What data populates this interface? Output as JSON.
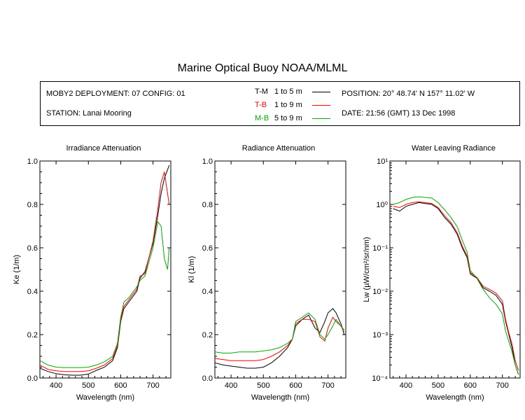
{
  "title": "Marine Optical Buoy NOAA/MLML",
  "info": {
    "deployment": "MOBY2 DEPLOYMENT: 07 CONFIG: 01",
    "station": "STATION: Lanai Mooring",
    "position": "POSITION: 20° 48.74' N   157° 11.02' W",
    "date": "DATE: 21:56 (GMT) 13 Dec 1998"
  },
  "legend": [
    {
      "code": "T-M",
      "range": "1 to 5  m",
      "color": "#000000"
    },
    {
      "code": "T-B",
      "range": "1 to 9  m",
      "color": "#ff0000"
    },
    {
      "code": "M-B",
      "range": "5 to 9  m",
      "color": "#00aa00"
    }
  ],
  "chart_data": [
    {
      "type": "line",
      "title": "Irradiance Attenuation",
      "xlabel": "Wavelength (nm)",
      "ylabel": "Ke  (1/m)",
      "xlim": [
        350,
        755
      ],
      "ylim": [
        0,
        1.0
      ],
      "xticks": [
        "400",
        "500",
        "600",
        "700"
      ],
      "yticks": [
        "0.0",
        "0.2",
        "0.4",
        "0.6",
        "0.8",
        "1.0"
      ],
      "x": [
        350,
        375,
        400,
        425,
        450,
        475,
        500,
        525,
        550,
        575,
        590,
        600,
        610,
        625,
        650,
        660,
        675,
        700,
        715,
        725,
        735,
        745,
        750
      ],
      "series": [
        {
          "name": "T-M",
          "color": "#000000",
          "values": [
            0.045,
            0.03,
            0.02,
            0.015,
            0.013,
            0.013,
            0.018,
            0.035,
            0.05,
            0.08,
            0.14,
            0.26,
            0.32,
            0.35,
            0.4,
            0.46,
            0.49,
            0.62,
            0.75,
            0.85,
            0.92,
            0.96,
            0.98
          ]
        },
        {
          "name": "T-B",
          "color": "#ff0000",
          "values": [
            0.06,
            0.04,
            0.033,
            0.03,
            0.03,
            0.03,
            0.033,
            0.045,
            0.06,
            0.09,
            0.15,
            0.27,
            0.33,
            0.36,
            0.41,
            0.47,
            0.48,
            0.63,
            0.78,
            0.9,
            0.95,
            0.85,
            0.8
          ]
        },
        {
          "name": "M-B",
          "color": "#00aa00",
          "values": [
            0.08,
            0.06,
            0.05,
            0.048,
            0.048,
            0.048,
            0.05,
            0.06,
            0.075,
            0.1,
            0.16,
            0.28,
            0.35,
            0.37,
            0.42,
            0.45,
            0.47,
            0.6,
            0.72,
            0.7,
            0.55,
            0.5,
            0.6
          ]
        }
      ]
    },
    {
      "type": "line",
      "title": "Radiance Attenuation",
      "xlabel": "Wavelength (nm)",
      "ylabel": "Kl  (1/m)",
      "xlim": [
        350,
        755
      ],
      "ylim": [
        0,
        1.0
      ],
      "xticks": [
        "400",
        "500",
        "600",
        "700"
      ],
      "yticks": [
        "0.0",
        "0.2",
        "0.4",
        "0.6",
        "0.8",
        "1.0"
      ],
      "x": [
        350,
        375,
        400,
        425,
        450,
        475,
        500,
        525,
        550,
        575,
        590,
        600,
        620,
        640,
        660,
        675,
        690,
        700,
        715,
        725,
        740,
        750
      ],
      "series": [
        {
          "name": "T-M",
          "color": "#000000",
          "values": [
            0.07,
            0.06,
            0.055,
            0.05,
            0.045,
            0.045,
            0.05,
            0.07,
            0.1,
            0.14,
            0.18,
            0.24,
            0.27,
            0.29,
            0.23,
            0.21,
            0.26,
            0.3,
            0.32,
            0.3,
            0.25,
            0.2
          ]
        },
        {
          "name": "T-B",
          "color": "#ff0000",
          "values": [
            0.09,
            0.085,
            0.08,
            0.08,
            0.08,
            0.08,
            0.085,
            0.1,
            0.12,
            0.15,
            0.18,
            0.25,
            0.27,
            0.27,
            0.26,
            0.19,
            0.17,
            0.23,
            0.28,
            0.26,
            0.24,
            0.22
          ]
        },
        {
          "name": "M-B",
          "color": "#00aa00",
          "values": [
            0.12,
            0.115,
            0.115,
            0.12,
            0.12,
            0.12,
            0.125,
            0.13,
            0.14,
            0.16,
            0.18,
            0.26,
            0.28,
            0.3,
            0.27,
            0.2,
            0.18,
            0.2,
            0.24,
            0.27,
            0.24,
            0.21
          ]
        }
      ]
    },
    {
      "type": "line",
      "title": "Water Leaving Radiance",
      "xlabel": "Wavelength (nm)",
      "ylabel": "Lw  (µW/cm²/sr/nm)",
      "xlim": [
        350,
        755
      ],
      "ylim": [
        0.0001,
        10
      ],
      "log_y": true,
      "xticks": [
        "400",
        "500",
        "600",
        "700"
      ],
      "yticks": [
        "10⁻⁴",
        "10⁻³",
        "10⁻²",
        "10⁻¹",
        "10⁰",
        "10¹"
      ],
      "x": [
        360,
        380,
        400,
        420,
        440,
        460,
        480,
        500,
        520,
        540,
        560,
        575,
        590,
        600,
        620,
        640,
        660,
        680,
        700,
        710,
        720,
        730,
        740,
        750
      ],
      "series": [
        {
          "name": "T-M",
          "color": "#000000",
          "values": [
            0.8,
            0.7,
            0.9,
            1.0,
            1.1,
            1.05,
            1.0,
            0.8,
            0.5,
            0.35,
            0.2,
            0.1,
            0.06,
            0.025,
            0.02,
            0.012,
            0.01,
            0.008,
            0.005,
            0.002,
            0.001,
            0.0005,
            0.0002,
            0.00012
          ]
        },
        {
          "name": "T-B",
          "color": "#ff0000",
          "values": [
            0.9,
            0.85,
            1.0,
            1.1,
            1.15,
            1.1,
            1.05,
            0.85,
            0.55,
            0.38,
            0.22,
            0.11,
            0.065,
            0.027,
            0.021,
            0.013,
            0.011,
            0.009,
            0.006,
            0.0022,
            0.0011,
            0.0006,
            0.00025,
            0.00015
          ]
        },
        {
          "name": "M-B",
          "color": "#00aa00",
          "values": [
            1.0,
            1.1,
            1.3,
            1.45,
            1.5,
            1.45,
            1.4,
            1.1,
            0.75,
            0.5,
            0.3,
            0.15,
            0.08,
            0.03,
            0.02,
            0.011,
            0.007,
            0.005,
            0.003,
            0.0012,
            0.0007,
            0.0004,
            0.0002,
            0.00012
          ]
        }
      ]
    }
  ]
}
